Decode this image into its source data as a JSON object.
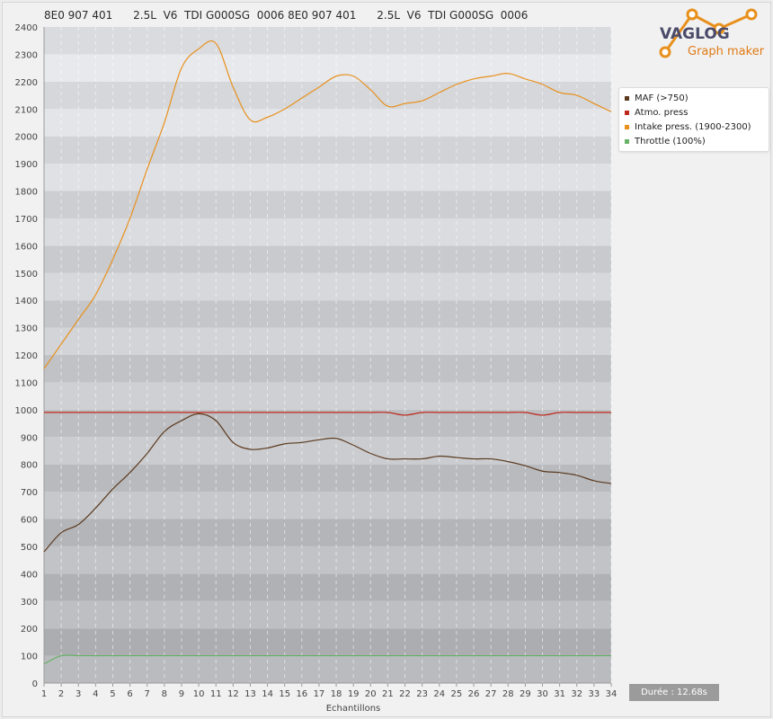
{
  "header": {
    "title": "8E0 907 401      2.5L  V6  TDI G000SG  0006 8E0 907 401      2.5L  V6  TDI G000SG  0006"
  },
  "logo": {
    "word1": "VAGLOG",
    "word2": "Graph maker",
    "color": "#e8901c"
  },
  "legend": {
    "items": [
      {
        "label": "MAF (>750)",
        "color": "#5c3a1e"
      },
      {
        "label": "Atmo. press",
        "color": "#c0281c"
      },
      {
        "label": "Intake press. (1900-2300)",
        "color": "#e8901c"
      },
      {
        "label": "Throttle (100%)",
        "color": "#66b266"
      }
    ]
  },
  "duration": {
    "label": "Durée : 12.68s"
  },
  "chart_data": {
    "type": "line",
    "xlabel": "Echantillons",
    "ylabel": "",
    "title": "",
    "xlim": [
      1,
      34
    ],
    "ylim": [
      0,
      2400
    ],
    "yticks": [
      0,
      100,
      200,
      300,
      400,
      500,
      600,
      700,
      800,
      900,
      1000,
      1100,
      1200,
      1300,
      1400,
      1500,
      1600,
      1700,
      1800,
      1900,
      2000,
      2100,
      2200,
      2300,
      2400
    ],
    "x": [
      1,
      2,
      3,
      4,
      5,
      6,
      7,
      8,
      9,
      10,
      11,
      12,
      13,
      14,
      15,
      16,
      17,
      18,
      19,
      20,
      21,
      22,
      23,
      24,
      25,
      26,
      27,
      28,
      29,
      30,
      31,
      32,
      33,
      34
    ],
    "grid": true,
    "legend_position": "right",
    "series": [
      {
        "name": "MAF (>750)",
        "color": "#5c3a1e",
        "values": [
          480,
          550,
          580,
          640,
          710,
          770,
          840,
          920,
          960,
          985,
          960,
          880,
          855,
          860,
          875,
          880,
          890,
          895,
          870,
          840,
          820,
          820,
          820,
          830,
          825,
          820,
          820,
          810,
          795,
          775,
          770,
          760,
          740,
          730
        ]
      },
      {
        "name": "Atmo. press",
        "color": "#c0281c",
        "values": [
          990,
          990,
          990,
          990,
          990,
          990,
          990,
          990,
          990,
          990,
          990,
          990,
          990,
          990,
          990,
          990,
          990,
          990,
          990,
          990,
          990,
          980,
          990,
          990,
          990,
          990,
          990,
          990,
          990,
          980,
          990,
          990,
          990,
          990
        ]
      },
      {
        "name": "Intake press. (1900-2300)",
        "color": "#e8901c",
        "values": [
          1150,
          1240,
          1330,
          1420,
          1550,
          1700,
          1880,
          2050,
          2250,
          2320,
          2340,
          2180,
          2060,
          2070,
          2100,
          2140,
          2180,
          2220,
          2220,
          2170,
          2110,
          2120,
          2130,
          2160,
          2190,
          2210,
          2220,
          2230,
          2210,
          2190,
          2160,
          2150,
          2120,
          2090
        ]
      },
      {
        "name": "Throttle (100%)",
        "color": "#66b266",
        "values": [
          70,
          100,
          100,
          100,
          100,
          100,
          100,
          100,
          100,
          100,
          100,
          100,
          100,
          100,
          100,
          100,
          100,
          100,
          100,
          100,
          100,
          100,
          100,
          100,
          100,
          100,
          100,
          100,
          100,
          100,
          100,
          100,
          100,
          100
        ]
      }
    ]
  }
}
